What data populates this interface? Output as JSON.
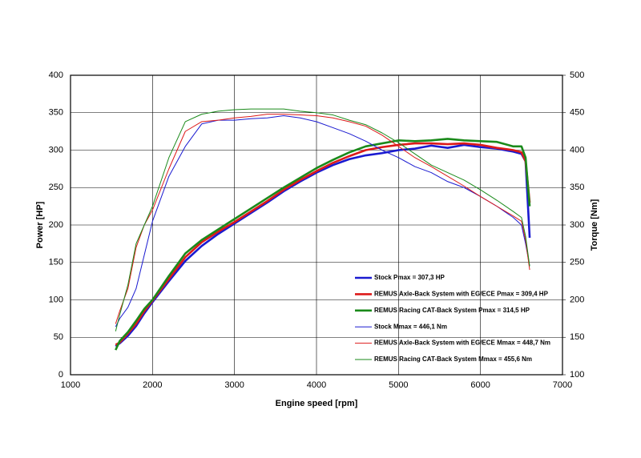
{
  "chart_data": {
    "type": "line",
    "xlabel": "Engine speed [rpm]",
    "ylabel": "Power [HP]",
    "y2label": "Torque [Nm]",
    "x": [
      1550,
      1600,
      1700,
      1800,
      1900,
      2000,
      2200,
      2400,
      2600,
      2800,
      3000,
      3200,
      3400,
      3600,
      3800,
      4000,
      4200,
      4400,
      4600,
      4800,
      5000,
      5200,
      5400,
      5600,
      5800,
      6000,
      6200,
      6400,
      6500,
      6550,
      6600
    ],
    "xlim": [
      1000,
      7000
    ],
    "xticks": [
      1000,
      2000,
      3000,
      4000,
      5000,
      6000,
      7000
    ],
    "ylim": [
      0,
      400
    ],
    "yticks": [
      0,
      50,
      100,
      150,
      200,
      250,
      300,
      350,
      400
    ],
    "y2lim": [
      100,
      500
    ],
    "y2ticks": [
      100,
      150,
      200,
      250,
      300,
      350,
      400,
      450,
      500
    ],
    "grid": true,
    "series": [
      {
        "name": "Stock Pmax = 307,3 HP",
        "color": "#1a1ad0",
        "line_width": 2.6,
        "values": [
          38,
          42,
          52,
          65,
          82,
          97,
          125,
          152,
          172,
          188,
          202,
          216,
          230,
          245,
          258,
          270,
          280,
          288,
          293,
          296,
          300,
          302,
          306,
          303,
          307,
          304,
          302,
          298,
          295,
          285,
          183
        ]
      },
      {
        "name": "REMUS Axle-Back System with EG/ECE Pmax = 309,4 HP",
        "color": "#dd1a1a",
        "line_width": 2.6,
        "values": [
          40,
          43,
          55,
          68,
          85,
          99,
          128,
          157,
          177,
          191,
          204,
          218,
          232,
          247,
          260,
          272,
          283,
          292,
          300,
          304,
          307,
          309,
          309,
          308,
          309,
          307,
          303,
          300,
          297,
          285,
          230
        ]
      },
      {
        "name": "REMUS Racing CAT-Back System Pmax = 314,5 HP",
        "color": "#1a8a1a",
        "line_width": 2.6,
        "values": [
          33,
          45,
          57,
          72,
          88,
          100,
          132,
          162,
          180,
          194,
          208,
          222,
          236,
          250,
          263,
          276,
          287,
          297,
          305,
          309,
          313,
          312,
          313,
          315,
          313,
          312,
          311,
          305,
          305,
          290,
          225
        ]
      },
      {
        "name": "Stock Mmax = 446,1 Nm",
        "color": "#1a1ad0",
        "line_width": 1,
        "axis": "y2",
        "values": [
          164,
          175,
          190,
          215,
          260,
          305,
          365,
          405,
          435,
          440,
          440,
          442,
          443,
          446,
          443,
          438,
          430,
          422,
          412,
          400,
          390,
          378,
          370,
          358,
          350,
          338,
          325,
          310,
          300,
          275,
          245
        ]
      },
      {
        "name": "REMUS Axle-Back System with EG/ECE Mmax = 448,7 Nm",
        "color": "#dd1a1a",
        "line_width": 1,
        "axis": "y2",
        "values": [
          168,
          185,
          215,
          270,
          300,
          320,
          375,
          425,
          438,
          440,
          443,
          445,
          448,
          448,
          447,
          446,
          443,
          438,
          432,
          420,
          405,
          390,
          378,
          365,
          352,
          338,
          325,
          312,
          305,
          280,
          240
        ]
      },
      {
        "name": "REMUS Racing CAT-Back System Mmax = 455,6 Nm",
        "color": "#1a8a1a",
        "line_width": 1,
        "axis": "y2",
        "values": [
          158,
          180,
          220,
          275,
          300,
          325,
          390,
          438,
          448,
          452,
          454,
          455,
          455,
          455,
          452,
          450,
          447,
          440,
          434,
          423,
          410,
          395,
          380,
          370,
          360,
          347,
          333,
          318,
          310,
          285,
          245
        ]
      }
    ]
  }
}
